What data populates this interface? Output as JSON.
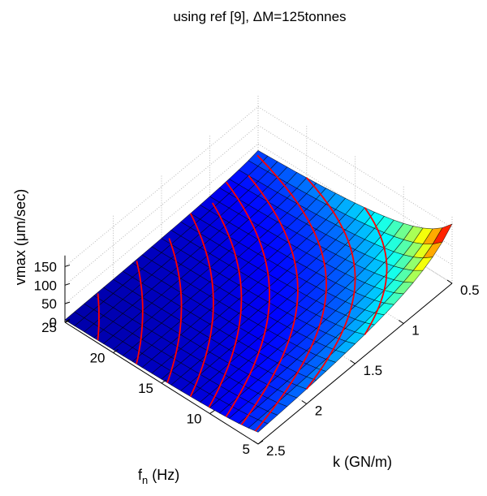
{
  "chart_data": {
    "type": "surface",
    "title": "using ref [9],  ΔM=125tonnes",
    "xlabel": "k (GN/m)",
    "ylabel_main": "f",
    "ylabel_sub": "n",
    "ylabel_unit": " (Hz)",
    "zlabel": "vmax (μm/sec)",
    "xlim": [
      0.5,
      2.5
    ],
    "ylim": [
      5,
      25
    ],
    "zlim": [
      0,
      150
    ],
    "x_ticks": [
      "0.5",
      "1",
      "1.5",
      "2",
      "2.5"
    ],
    "y_ticks": [
      "25",
      "20",
      "15",
      "10",
      "5"
    ],
    "z_ticks": [
      "0",
      "50",
      "100",
      "150"
    ],
    "colormap": "jet",
    "grid": true,
    "corner_values": [
      {
        "k": 0.5,
        "fn": 5,
        "vmax": 160
      },
      {
        "k": 0.5,
        "fn": 25,
        "vmax": 32
      },
      {
        "k": 2.5,
        "fn": 5,
        "vmax": 32
      },
      {
        "k": 2.5,
        "fn": 25,
        "vmax": 20
      }
    ],
    "contour_color": "#ff0000"
  }
}
